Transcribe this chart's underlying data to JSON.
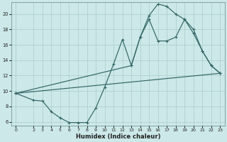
{
  "bg_color": "#cce8e8",
  "grid_color": "#aacccc",
  "line_color": "#336666",
  "xlabel": "Humidex (Indice chaleur)",
  "xlim": [
    -0.5,
    23.5
  ],
  "ylim": [
    5.5,
    21.5
  ],
  "yticks": [
    6,
    8,
    10,
    12,
    14,
    16,
    18,
    20
  ],
  "xticks": [
    0,
    2,
    3,
    4,
    5,
    6,
    7,
    8,
    9,
    10,
    11,
    12,
    13,
    14,
    15,
    16,
    17,
    18,
    19,
    20,
    21,
    22,
    23
  ],
  "line1_x": [
    0,
    2,
    3,
    4,
    5,
    6,
    7,
    8,
    9,
    10,
    11,
    12,
    13,
    14,
    15,
    16,
    17,
    18,
    19,
    20,
    21,
    22,
    23
  ],
  "line1_y": [
    9.7,
    8.8,
    8.7,
    7.3,
    6.5,
    5.9,
    5.9,
    5.9,
    7.8,
    10.5,
    13.5,
    16.7,
    13.3,
    17.0,
    19.8,
    21.3,
    21.0,
    20.0,
    19.3,
    18.0,
    15.2,
    13.3,
    12.3
  ],
  "line2_x": [
    0,
    13,
    14,
    15,
    16,
    17,
    18,
    19,
    20,
    21,
    22,
    23
  ],
  "line2_y": [
    9.7,
    13.3,
    17.0,
    19.3,
    16.5,
    16.5,
    17.0,
    19.3,
    17.5,
    15.2,
    13.3,
    12.3
  ],
  "line3_x": [
    0,
    23
  ],
  "line3_y": [
    9.7,
    12.3
  ]
}
